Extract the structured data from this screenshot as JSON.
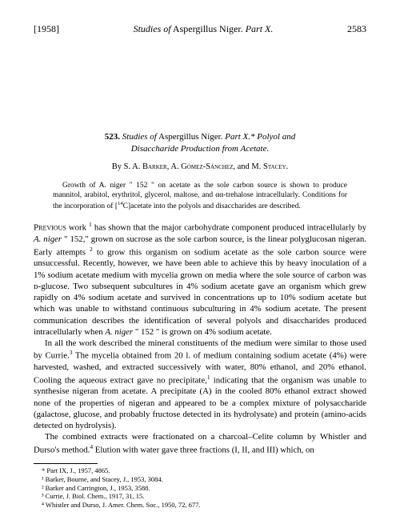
{
  "header": {
    "year": "[1958]",
    "running_title_pre": "Studies of",
    "running_title_italic": " Aspergillus Niger.",
    "running_title_post": "  Part X.",
    "page": "2583"
  },
  "title": {
    "number": "523.",
    "line1_pre": "Studies of",
    "line1_italic": " Aspergillus Niger.",
    "line1_post": "  Part X.*  Polyol and",
    "line2": "Disaccharide Production from Acetate."
  },
  "byline": {
    "by": "By ",
    "authors": "S. A. Barker, A. Gómez-Sánchez, ",
    "and": "and ",
    "last": "M. Stacey."
  },
  "abstract": {
    "p1a": "Growth of ",
    "p1b": "A. niger",
    "p1c": " \" 152 \" on acetate as the sole carbon source is shown to produce mannitol, arabitol, erythritol, glycerol, maltose, and αα-trehalose intracellularly. Conditions for the incorporation of [",
    "p1d": "14",
    "p1e": "C]acetate into the polyols and disaccharides are described."
  },
  "body": {
    "p1_lead": "Previous",
    "p1a": " work ",
    "p1sup1": "1",
    "p1b": " has shown that the major carbohydrate component produced intracellularly by ",
    "p1c": "A. niger",
    "p1d": " \" 152,\" grown on sucrose as the sole carbon source, is the linear polyglucosan nigeran. Early attempts ",
    "p1sup2": "2",
    "p1e": " to grow this organism on sodium acetate as the sole carbon source were unsuccessful. Recently, however, we have been able to achieve this by heavy inoculation of a 1% sodium acetate medium with mycelia grown on media where the sole source of carbon was ᴅ-glucose. Two subsequent subcultures in 4% sodium acetate gave an organism which grew rapidly on 4% sodium acetate and survived in concentrations up to 10% sodium acetate but which was unable to withstand continuous subculturing in 4% sodium acetate. The present communication describes the identification of several polyols and disaccharides produced intracellularly when ",
    "p1f": "A. niger",
    "p1g": " \" 152 \" is grown on 4% sodium acetate.",
    "p2a": "In all the work described the mineral constituents of the medium were similar to those used by Currie.",
    "p2sup3": "3",
    "p2b": " The mycelia obtained from 20 l. of medium containing sodium acetate (4%) were harvested, washed, and extracted successively with water, 80% ethanol, and 20% ethanol. Cooling the aqueous extract gave no precipitate,",
    "p2sup1": "1",
    "p2c": " indicating that the organism was unable to synthesise nigeran from acetate. A precipitate (A) in the cooled 80% ethanol extract showed none of the properties of nigeran and appeared to be a complex mixture of polysaccharide (galactose, glucose, and probably fructose detected in its hydrolysate) and protein (amino-acids detected on hydrolysis).",
    "p3a": "The combined extracts were fractionated on a charcoal–Celite column by Whistler and Durso's method.",
    "p3sup4": "4",
    "p3b": " Elution with water gave three fractions (I, II, and III) which, on"
  },
  "footnotes": {
    "star": "* Part IX, J., 1957, 4865.",
    "f1": "¹ Barker, Bourne, and Stacey, J., 1953, 3084.",
    "f2": "² Barker and Carrington, J., 1953, 3588.",
    "f3": "³ Currie, J. Biol. Chem., 1917, 31, 15.",
    "f4": "⁴ Whistler and Durso, J. Amer. Chem. Soc., 1950, 72, 677."
  }
}
